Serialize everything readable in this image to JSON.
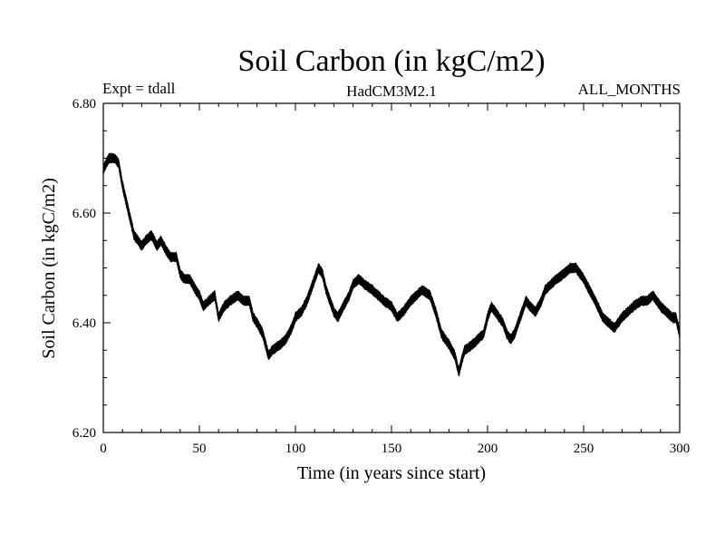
{
  "chart_data": {
    "type": "line",
    "title": "Soil Carbon (in kgC/m2)",
    "subtitle_left": "Expt = tdall",
    "subtitle_center": "HadCM3M2.1",
    "subtitle_right": "ALL_MONTHS",
    "xlabel": "Time (in years since start)",
    "ylabel": "Soil Carbon (in kgC/m2)",
    "xlim": [
      0,
      300
    ],
    "ylim": [
      6.2,
      6.8
    ],
    "x_ticks": [
      0,
      50,
      100,
      150,
      200,
      250,
      300
    ],
    "x_tick_labels": [
      "0",
      "50",
      "100",
      "150",
      "200",
      "250",
      "300"
    ],
    "y_ticks": [
      6.2,
      6.4,
      6.6,
      6.8
    ],
    "y_tick_labels": [
      "6.20",
      "6.40",
      "6.60",
      "6.80"
    ],
    "grid": false,
    "series": [
      {
        "name": "Soil Carbon",
        "band_halfwidth": 0.009,
        "x": [
          0,
          3,
          6,
          8,
          10,
          12,
          14,
          16,
          18,
          20,
          22,
          25,
          28,
          30,
          33,
          35,
          38,
          40,
          42,
          45,
          48,
          50,
          52,
          55,
          58,
          60,
          63,
          66,
          70,
          73,
          76,
          78,
          80,
          83,
          86,
          88,
          92,
          95,
          98,
          100,
          103,
          106,
          110,
          112,
          114,
          116,
          118,
          120,
          122,
          125,
          128,
          130,
          133,
          136,
          140,
          143,
          146,
          150,
          153,
          156,
          160,
          163,
          166,
          170,
          173,
          176,
          180,
          183,
          185,
          188,
          192,
          195,
          198,
          200,
          202,
          204,
          206,
          208,
          210,
          212,
          214,
          216,
          218,
          220,
          222,
          225,
          228,
          230,
          233,
          236,
          240,
          243,
          246,
          250,
          253,
          256,
          260,
          263,
          266,
          270,
          273,
          276,
          280,
          283,
          286,
          290,
          293,
          296,
          298,
          300
        ],
        "y": [
          6.68,
          6.7,
          6.7,
          6.69,
          6.65,
          6.62,
          6.59,
          6.56,
          6.55,
          6.54,
          6.55,
          6.56,
          6.54,
          6.55,
          6.53,
          6.52,
          6.52,
          6.49,
          6.48,
          6.48,
          6.46,
          6.45,
          6.43,
          6.44,
          6.45,
          6.41,
          6.43,
          6.44,
          6.45,
          6.44,
          6.44,
          6.41,
          6.4,
          6.38,
          6.34,
          6.35,
          6.36,
          6.37,
          6.39,
          6.41,
          6.42,
          6.44,
          6.48,
          6.5,
          6.49,
          6.46,
          6.44,
          6.42,
          6.41,
          6.43,
          6.45,
          6.47,
          6.48,
          6.47,
          6.46,
          6.45,
          6.44,
          6.43,
          6.41,
          6.42,
          6.44,
          6.45,
          6.46,
          6.45,
          6.42,
          6.38,
          6.36,
          6.34,
          6.31,
          6.35,
          6.36,
          6.37,
          6.38,
          6.41,
          6.43,
          6.42,
          6.41,
          6.4,
          6.38,
          6.37,
          6.38,
          6.4,
          6.42,
          6.44,
          6.43,
          6.42,
          6.44,
          6.46,
          6.47,
          6.48,
          6.49,
          6.5,
          6.5,
          6.48,
          6.46,
          6.44,
          6.41,
          6.4,
          6.39,
          6.41,
          6.42,
          6.43,
          6.44,
          6.44,
          6.45,
          6.43,
          6.42,
          6.41,
          6.41,
          6.38
        ]
      }
    ],
    "colors": {
      "line": "#000000",
      "axis": "#000000",
      "background": "#ffffff"
    }
  }
}
